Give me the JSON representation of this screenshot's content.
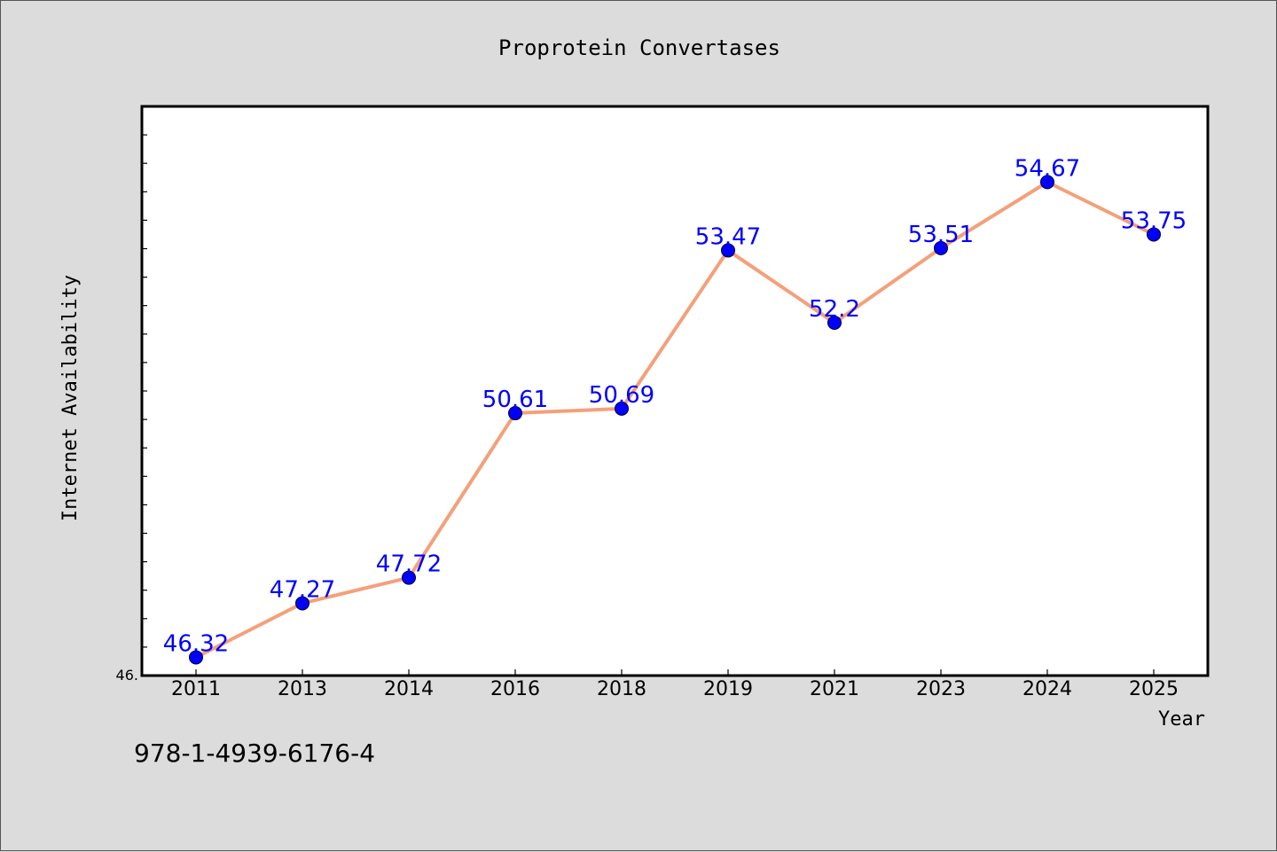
{
  "chart_data": {
    "type": "line",
    "title": "Proprotein Convertases",
    "xlabel": "Year",
    "ylabel": "Internet Availability",
    "categories": [
      "2011",
      "2013",
      "2014",
      "2016",
      "2018",
      "2019",
      "2021",
      "2023",
      "2024",
      "2025"
    ],
    "series": [
      {
        "values": [
          46.32,
          47.27,
          47.72,
          50.61,
          50.69,
          53.47,
          52.2,
          53.51,
          54.67,
          53.75
        ],
        "line_color": "#f4a07a",
        "marker_color": "#0000ff"
      }
    ],
    "data_labels": [
      "46.32",
      "47.27",
      "47.72",
      "50.61",
      "50.69",
      "53.47",
      "52.2",
      "53.51",
      "54.67",
      "53.75"
    ],
    "ylim": [
      46.0,
      56.0
    ],
    "y_tick_label": "46.",
    "grid": false,
    "legend": "none",
    "label_color": "#0000ff"
  },
  "caption": "978-1-4939-6176-4"
}
